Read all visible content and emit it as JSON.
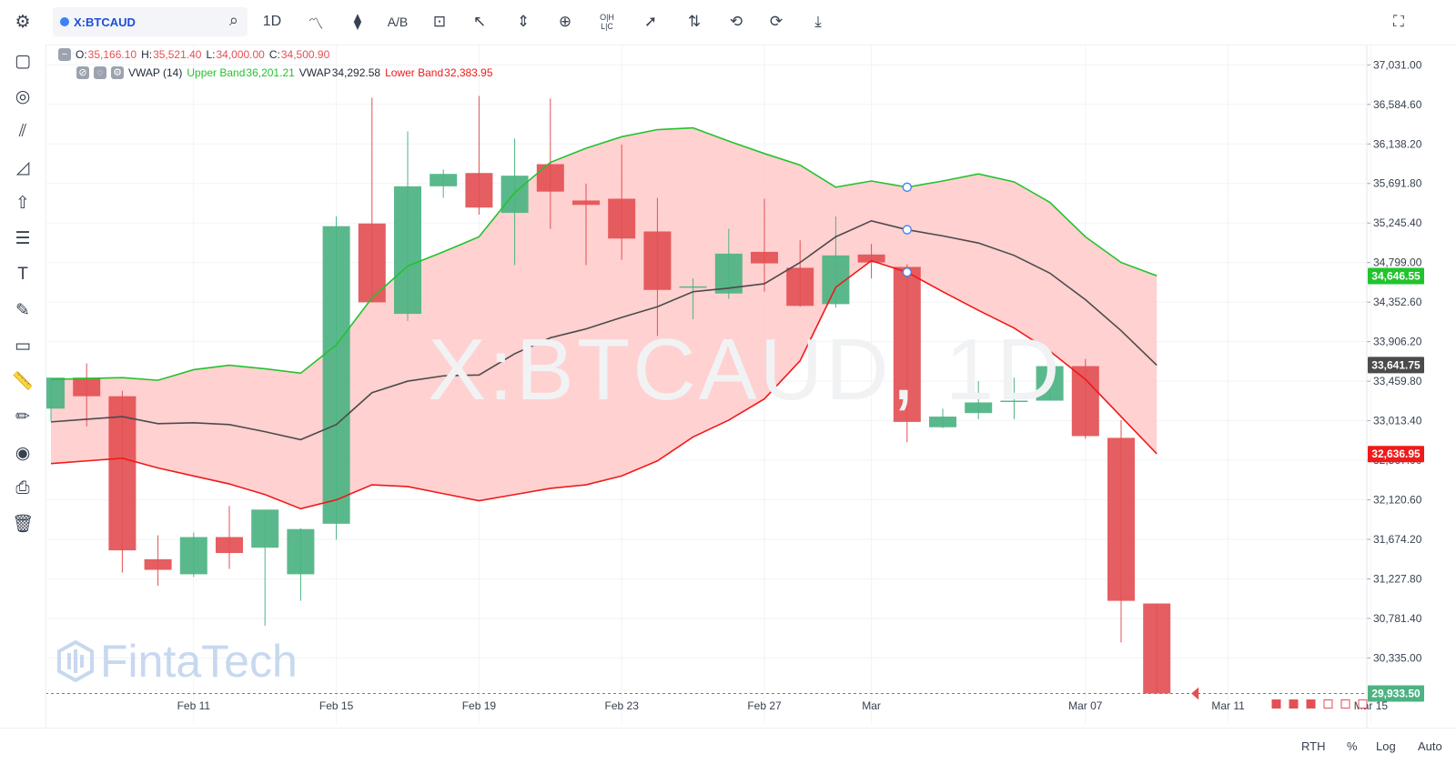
{
  "toolbar": {
    "symbol": "X:BTCAUD",
    "interval": "1D",
    "tools": [
      "indicators-icon",
      "candles-icon",
      "compare-icon",
      "text-template-icon",
      "cursor-icon",
      "fit-icon",
      "zoom-icon",
      "ohlc-icon",
      "select-icon",
      "sort-icon",
      "undo-icon",
      "redo-icon",
      "download-icon",
      "fullscreen-icon"
    ],
    "ohlc_label": "O|H\nL|C"
  },
  "legend": {
    "o_label": "O:",
    "o": "35,166.10",
    "h_label": "H:",
    "h": "35,521.40",
    "l_label": "L:",
    "l": "34,000.00",
    "c_label": "C:",
    "c": "34,500.90",
    "indicator": "VWAP (14)",
    "upper_label": "Upper Band",
    "upper": "36,201.21",
    "vwap_label": "VWAP",
    "vwap": "34,292.58",
    "lower_label": "Lower Band",
    "lower": "32,383.95"
  },
  "watermark": "X:BTCAUD, 1D",
  "brand": "FintaTech",
  "bottom": {
    "rth": "RTH",
    "percent": "%",
    "log": "Log",
    "auto": "Auto"
  },
  "colors": {
    "up": "#4cb382",
    "down": "#e35054",
    "upper_band": "#22c32e",
    "lower_band": "#ef1a1a",
    "vwap": "#4b4b4b",
    "band_fill": "#ffc9c9"
  },
  "chart_data": {
    "type": "candlestick",
    "symbol": "X:BTCAUD",
    "interval": "1D",
    "ylim": [
      29600,
      37250
    ],
    "y_ticks": [
      "37,031.00",
      "36,584.60",
      "36,138.20",
      "35,691.80",
      "35,245.40",
      "34,799.00",
      "34,352.60",
      "33,906.20",
      "33,459.80",
      "33,013.40",
      "32,567.00",
      "32,120.60",
      "31,674.20",
      "31,227.80",
      "30,781.40",
      "30,335.00"
    ],
    "x_ticks": [
      "Feb 11",
      "Feb 15",
      "Feb 19",
      "Feb 23",
      "Feb 27",
      "Mar",
      "Mar 07",
      "Mar 11",
      "Mar 15"
    ],
    "last_price": "29,933.50",
    "upper_band_tag": "34,646.55",
    "vwap_tag": "33,641.75",
    "lower_band_tag": "32,636.95",
    "candles": [
      {
        "date": "Feb 07",
        "o": 33150,
        "h": 33450,
        "l": 33010,
        "c": 33500
      },
      {
        "date": "Feb 08",
        "o": 33500,
        "h": 33660,
        "l": 32950,
        "c": 33290
      },
      {
        "date": "Feb 09",
        "o": 33290,
        "h": 33350,
        "l": 31300,
        "c": 31550
      },
      {
        "date": "Feb 10",
        "o": 31450,
        "h": 31720,
        "l": 31150,
        "c": 31330
      },
      {
        "date": "Feb 11",
        "o": 31280,
        "h": 31750,
        "l": 31250,
        "c": 31700
      },
      {
        "date": "Feb 12",
        "o": 31700,
        "h": 32050,
        "l": 31340,
        "c": 31520
      },
      {
        "date": "Feb 13",
        "o": 31580,
        "h": 32000,
        "l": 30700,
        "c": 32010
      },
      {
        "date": "Feb 14",
        "o": 31280,
        "h": 31800,
        "l": 30980,
        "c": 31790
      },
      {
        "date": "Feb 15",
        "o": 31850,
        "h": 35320,
        "l": 31670,
        "c": 35210
      },
      {
        "date": "Feb 16",
        "o": 35240,
        "h": 36660,
        "l": 34350,
        "c": 34350
      },
      {
        "date": "Feb 17",
        "o": 34220,
        "h": 36280,
        "l": 34140,
        "c": 35660
      },
      {
        "date": "Feb 18",
        "o": 35660,
        "h": 35850,
        "l": 35530,
        "c": 35800
      },
      {
        "date": "Feb 19",
        "o": 35810,
        "h": 36680,
        "l": 35340,
        "c": 35420
      },
      {
        "date": "Feb 20",
        "o": 35360,
        "h": 36200,
        "l": 34770,
        "c": 35780
      },
      {
        "date": "Feb 21",
        "o": 35910,
        "h": 36650,
        "l": 35180,
        "c": 35600
      },
      {
        "date": "Feb 22",
        "o": 35500,
        "h": 35690,
        "l": 34770,
        "c": 35450
      },
      {
        "date": "Feb 23",
        "o": 35520,
        "h": 36130,
        "l": 34830,
        "c": 35070
      },
      {
        "date": "Feb 24",
        "o": 35150,
        "h": 35530,
        "l": 33970,
        "c": 34490
      },
      {
        "date": "Feb 25",
        "o": 34520,
        "h": 34620,
        "l": 34160,
        "c": 34530
      },
      {
        "date": "Feb 26",
        "o": 34450,
        "h": 35180,
        "l": 34390,
        "c": 34900
      },
      {
        "date": "Feb 27",
        "o": 34920,
        "h": 35520,
        "l": 34470,
        "c": 34790
      },
      {
        "date": "Feb 28",
        "o": 34740,
        "h": 35050,
        "l": 34300,
        "c": 34310
      },
      {
        "date": "Feb 29",
        "o": 34330,
        "h": 35320,
        "l": 34290,
        "c": 34880
      },
      {
        "date": "Mar 01",
        "o": 34890,
        "h": 35010,
        "l": 34620,
        "c": 34800
      },
      {
        "date": "Mar 02",
        "o": 34750,
        "h": 34780,
        "l": 32770,
        "c": 33000
      },
      {
        "date": "Mar 03",
        "o": 32940,
        "h": 33150,
        "l": 32930,
        "c": 33060
      },
      {
        "date": "Mar 04",
        "o": 33100,
        "h": 33460,
        "l": 33030,
        "c": 33220
      },
      {
        "date": "Mar 05",
        "o": 33240,
        "h": 33500,
        "l": 33030,
        "c": 33240
      },
      {
        "date": "Mar 06",
        "o": 33240,
        "h": 33630,
        "l": 33240,
        "c": 33630
      },
      {
        "date": "Mar 07",
        "o": 33630,
        "h": 33710,
        "l": 32810,
        "c": 32840
      },
      {
        "date": "Mar 08",
        "o": 32820,
        "h": 33020,
        "l": 30510,
        "c": 30980
      },
      {
        "date": "Mar 09",
        "o": 30950,
        "h": 30950,
        "l": 29930,
        "c": 29933.5
      }
    ],
    "upper_band": [
      33480,
      33490,
      33500,
      33470,
      33590,
      33640,
      33600,
      33550,
      33870,
      34400,
      34760,
      34920,
      35090,
      35590,
      35930,
      36090,
      36220,
      36300,
      36320,
      36170,
      36030,
      35900,
      35650,
      35720,
      35650,
      35720,
      35800,
      35710,
      35480,
      35090,
      34800,
      34650
    ],
    "vwap": [
      33000,
      33030,
      33060,
      32980,
      32990,
      32970,
      32890,
      32800,
      32970,
      33330,
      33460,
      33520,
      33530,
      33770,
      33950,
      34050,
      34180,
      34300,
      34470,
      34510,
      34560,
      34800,
      35090,
      35270,
      35170,
      35100,
      35020,
      34880,
      34680,
      34380,
      34030,
      33640
    ],
    "lower_band": [
      32530,
      32560,
      32590,
      32480,
      32390,
      32300,
      32180,
      32020,
      32120,
      32290,
      32270,
      32190,
      32110,
      32180,
      32250,
      32290,
      32390,
      32560,
      32830,
      33020,
      33260,
      33690,
      34520,
      34820,
      34690,
      34470,
      34260,
      34060,
      33800,
      33480,
      33060,
      32640
    ]
  }
}
